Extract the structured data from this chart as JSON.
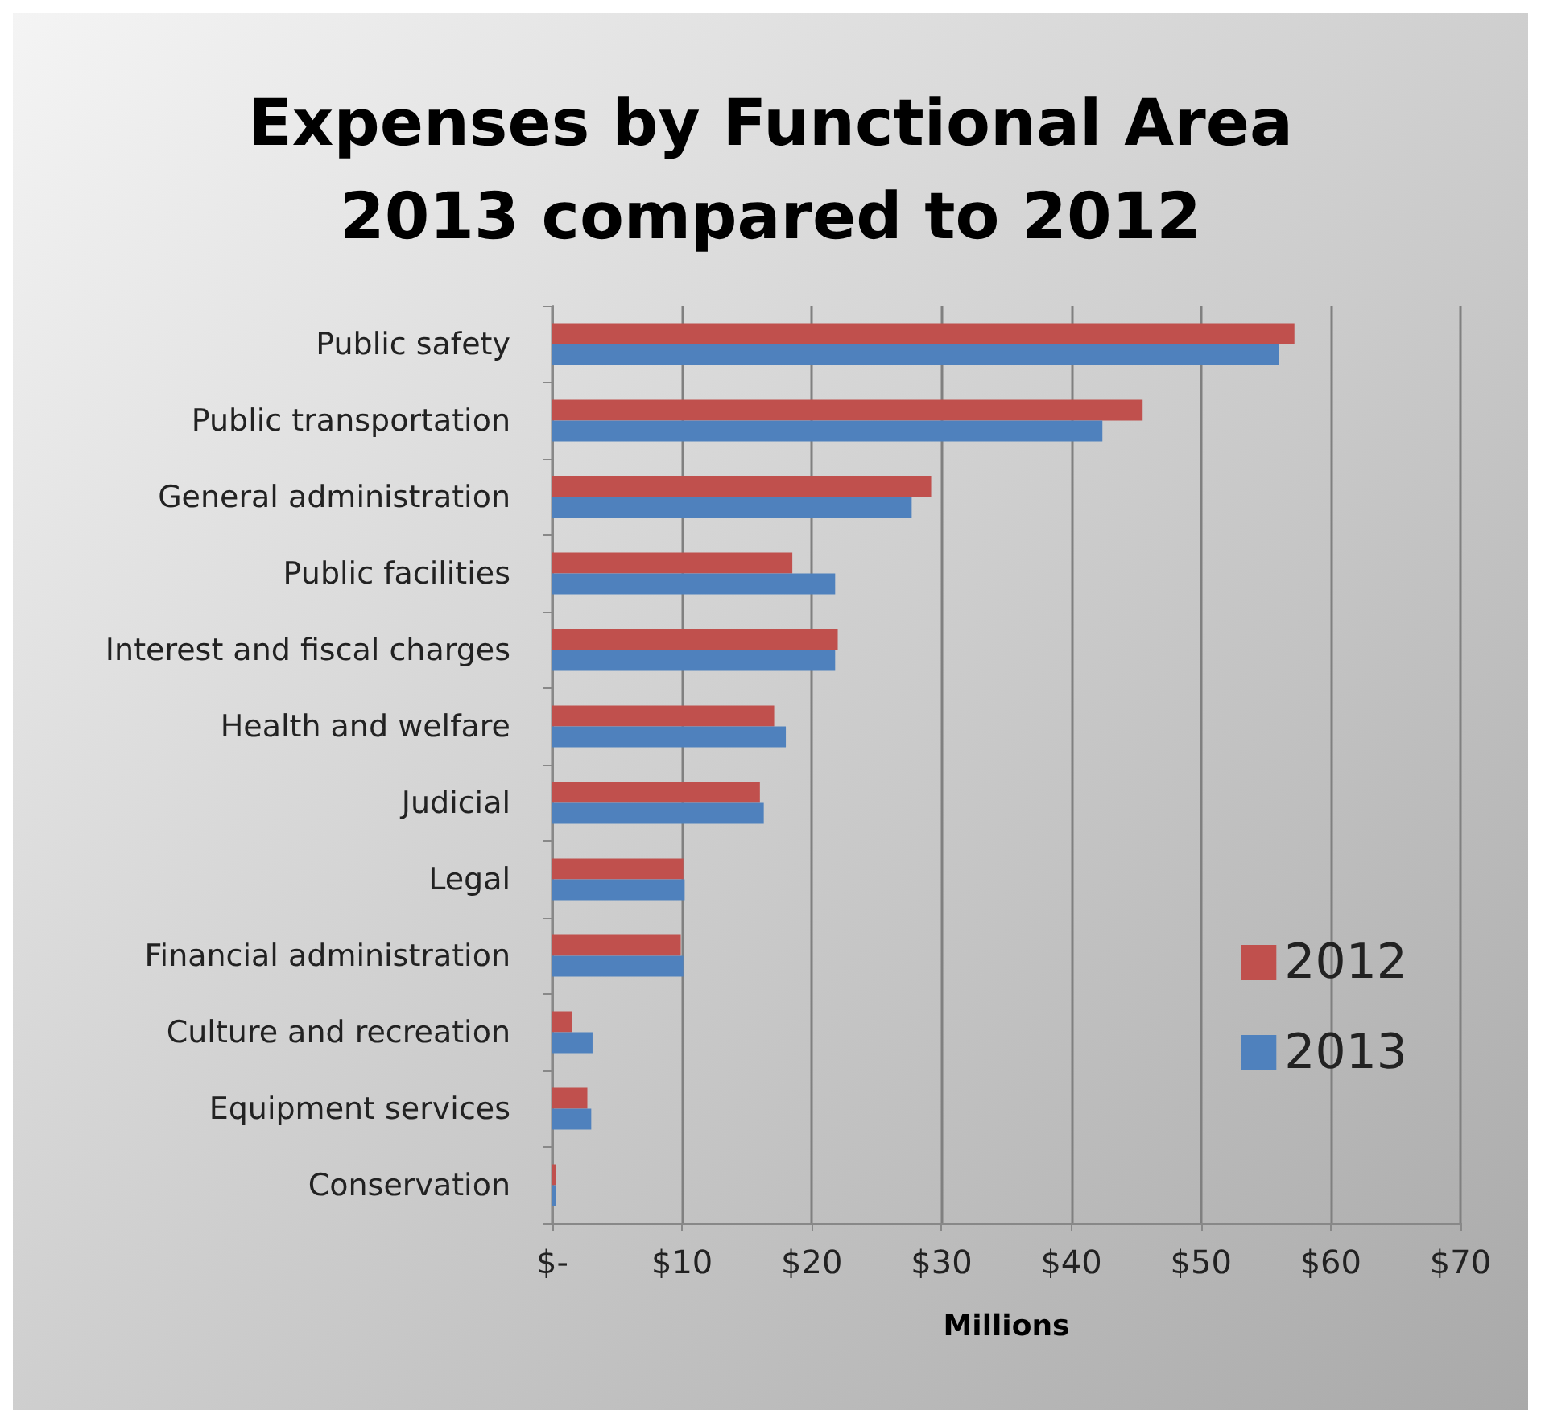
{
  "chart_data": {
    "type": "bar",
    "orientation": "horizontal",
    "title": "Expenses by Functional Area\n2013 compared to 2012",
    "xlabel": "Millions",
    "categories": [
      "Public safety",
      "Public transportation",
      "General administration",
      "Public facilities",
      "Interest and fiscal charges",
      "Health and welfare",
      "Judicial",
      "Legal",
      "Financial administration",
      "Culture and recreation",
      "Equipment services",
      "Conservation"
    ],
    "series": [
      {
        "name": "2012",
        "color": "#c0504d",
        "values": [
          57.2,
          45.5,
          29.2,
          18.5,
          22.0,
          17.1,
          16.0,
          10.1,
          9.9,
          1.5,
          2.7,
          0.3
        ]
      },
      {
        "name": "2013",
        "color": "#4f81bd",
        "values": [
          56.0,
          42.4,
          27.7,
          21.8,
          21.8,
          18.0,
          16.3,
          10.2,
          10.1,
          3.1,
          3.0,
          0.3
        ]
      }
    ],
    "xlim": [
      0,
      70
    ],
    "xticks": [
      {
        "value": 0,
        "label": "$-"
      },
      {
        "value": 10,
        "label": "$10"
      },
      {
        "value": 20,
        "label": "$20"
      },
      {
        "value": 30,
        "label": "$30"
      },
      {
        "value": 40,
        "label": "$40"
      },
      {
        "value": 50,
        "label": "$50"
      },
      {
        "value": 60,
        "label": "$60"
      },
      {
        "value": 70,
        "label": "$70"
      }
    ],
    "grid": "x",
    "legend": "right"
  }
}
